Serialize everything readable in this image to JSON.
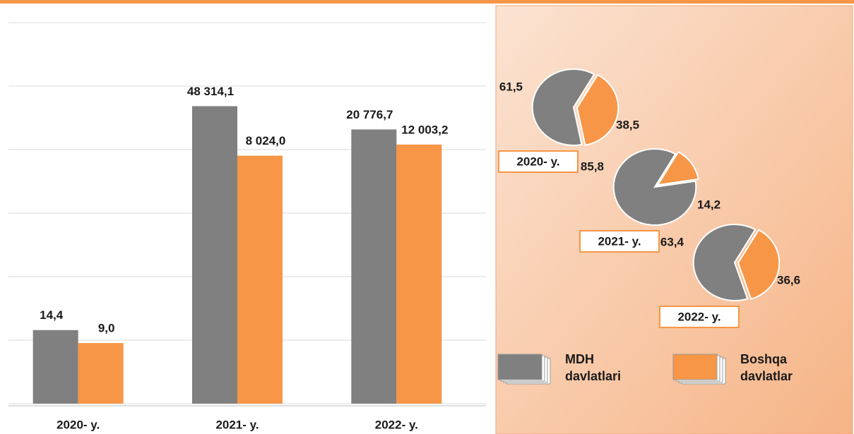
{
  "chart_data": [
    {
      "type": "bar",
      "categories": [
        "2020- y.",
        "2021- y.",
        "2022- y."
      ],
      "series": [
        {
          "color": "#808080",
          "values": [
            14.4,
            48314.1,
            20776.7
          ],
          "value_labels": [
            "14,4",
            "48 314,1",
            "20 776,7"
          ]
        },
        {
          "color": "#f79646",
          "values": [
            9,
            8024,
            12003.2
          ],
          "value_labels": [
            "9,0",
            "8 024,0",
            "12 003,2"
          ]
        }
      ],
      "log_scale": true,
      "ylim": [
        1,
        1000000
      ],
      "yticks": [
        1,
        10,
        100,
        1000,
        10000,
        100000,
        1000000
      ],
      "grid": true
    },
    {
      "type": "pie",
      "categories": [
        "MDH davlatlari",
        "Boshqa davlatlar"
      ],
      "colors": [
        "#808080",
        "#f79646"
      ],
      "pies": [
        {
          "title": "2020- y.",
          "values": [
            61.5,
            38.5
          ],
          "value_labels": [
            "61,5",
            "38,5"
          ]
        },
        {
          "title": "2021- y.",
          "values": [
            85.8,
            14.2
          ],
          "value_labels": [
            "85,8",
            "14,2"
          ]
        },
        {
          "title": "2022- y.",
          "values": [
            63.4,
            36.6
          ],
          "value_labels": [
            "63,4",
            "36,6"
          ]
        }
      ]
    }
  ]
}
